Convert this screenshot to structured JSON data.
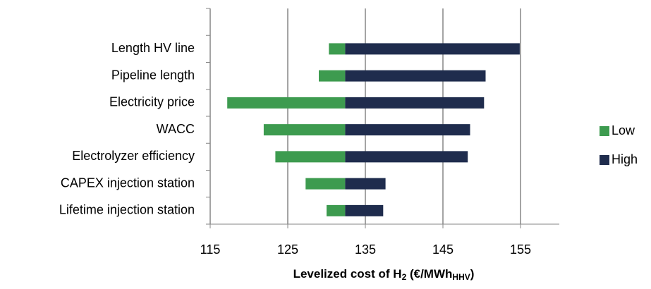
{
  "chart_data": {
    "type": "tornado",
    "x_label": [
      "Levelized cost of H",
      "2",
      " (€/MWh",
      "HHV",
      ")"
    ],
    "categories": [
      null,
      "Length HV line",
      "Pipeline length",
      "Electricity price",
      "WACC",
      "Electrolyzer efficiency",
      "CAPEX injection station",
      "Lifetime injection station"
    ],
    "base": 132.4,
    "series": [
      {
        "name": "Low",
        "color": "#3d9b4f",
        "values": [
          null,
          130.3,
          129.0,
          117.2,
          121.9,
          123.4,
          127.3,
          130.0
        ]
      },
      {
        "name": "High",
        "color": "#1f2c4d",
        "values": [
          null,
          154.9,
          150.5,
          150.3,
          148.5,
          148.2,
          137.6,
          137.3
        ]
      }
    ],
    "xlim": [
      115,
      160
    ],
    "xticks": [
      115,
      125,
      135,
      145,
      155
    ],
    "grid": true
  }
}
